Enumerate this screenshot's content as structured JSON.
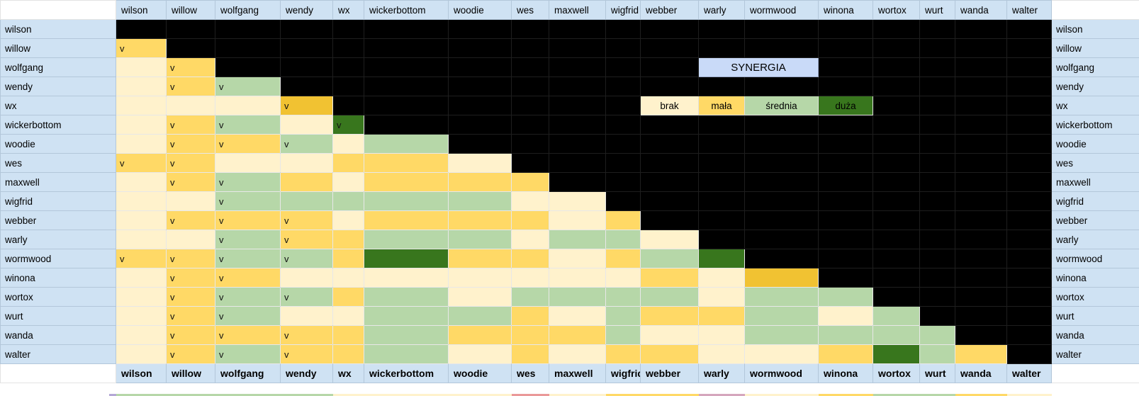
{
  "sheet": {
    "characters": [
      "wilson",
      "willow",
      "wolfgang",
      "wendy",
      "wx",
      "wickerbottom",
      "woodie",
      "wes",
      "maxwell",
      "wigfrid",
      "webber",
      "warly",
      "wormwood",
      "winona",
      "wortox",
      "wurt",
      "wanda",
      "walter"
    ],
    "check_mark": "v",
    "legend": {
      "title": "SYNERGIA",
      "items": [
        {
          "label": "brak",
          "key": "0"
        },
        {
          "label": "mała",
          "key": "1"
        },
        {
          "label": "średnia",
          "key": "2"
        },
        {
          "label": "duża",
          "key": "3"
        }
      ]
    },
    "colors": {
      "header_bg": "#cfe2f3",
      "legend_title_bg": "#c9daf8",
      "empty": "#000000",
      "brak": "#fff2cc",
      "mala": "#ffd966",
      "mala_dark": "#f1c232",
      "srednia": "#b6d7a8",
      "duza": "#38761d"
    },
    "bottom_strip": [
      "#b6d7a8",
      "#b6d7a8",
      "#b6d7a8",
      "#b6d7a8",
      "#fff2cc",
      "#fff2cc",
      "#fff2cc",
      "#ea9999",
      "#fff2cc",
      "#ffd966",
      "#ffd966",
      "#d5a6bd",
      "#fff2cc",
      "#ffd966",
      "#b6d7a8",
      "#b6d7a8",
      "#ffd966",
      "#fff2cc"
    ]
  },
  "chart_data": {
    "type": "heatmap",
    "title": "SYNERGIA",
    "legend": [
      "brak",
      "mała",
      "średnia",
      "duża"
    ],
    "code_key": {
      "b": "empty black cell (diagonal and upper triangle)",
      "0": "brak (no synergy, cream #fff2cc)",
      "1": "mała (small synergy, yellow #ffd966)",
      "d": "mała - darker gold variant (#f1c232)",
      "2": "średnia (medium synergy, light green #b6d7a8)",
      "3": "duża (large synergy, dark green #38761d)",
      "v": "suffix = cell contains a 'v' checkmark"
    },
    "columns_note": "cell order matches sheet.characters",
    "rows": [
      {
        "name": "wilson",
        "cells": [
          "b",
          "b",
          "b",
          "b",
          "b",
          "b",
          "b",
          "b",
          "b",
          "b",
          "b",
          "b",
          "b",
          "b",
          "b",
          "b",
          "b",
          "b"
        ]
      },
      {
        "name": "willow",
        "cells": [
          "1v",
          "b",
          "b",
          "b",
          "b",
          "b",
          "b",
          "b",
          "b",
          "b",
          "b",
          "b",
          "b",
          "b",
          "b",
          "b",
          "b",
          "b"
        ]
      },
      {
        "name": "wolfgang",
        "cells": [
          "0",
          "1v",
          "b",
          "b",
          "b",
          "b",
          "b",
          "b",
          "b",
          "b",
          "b",
          "b",
          "b",
          "b",
          "b",
          "b",
          "b",
          "b"
        ]
      },
      {
        "name": "wendy",
        "cells": [
          "0",
          "1v",
          "2v",
          "b",
          "b",
          "b",
          "b",
          "b",
          "b",
          "b",
          "b",
          "b",
          "b",
          "b",
          "b",
          "b",
          "b",
          "b"
        ]
      },
      {
        "name": "wx",
        "cells": [
          "0",
          "0",
          "0",
          "dv",
          "b",
          "b",
          "b",
          "b",
          "b",
          "b",
          "b",
          "b",
          "b",
          "b",
          "b",
          "b",
          "b",
          "b"
        ]
      },
      {
        "name": "wickerbottom",
        "cells": [
          "0",
          "1v",
          "2v",
          "0",
          "3v",
          "b",
          "b",
          "b",
          "b",
          "b",
          "b",
          "b",
          "b",
          "b",
          "b",
          "b",
          "b",
          "b"
        ]
      },
      {
        "name": "woodie",
        "cells": [
          "0",
          "1v",
          "1v",
          "2v",
          "0",
          "2",
          "b",
          "b",
          "b",
          "b",
          "b",
          "b",
          "b",
          "b",
          "b",
          "b",
          "b",
          "b"
        ]
      },
      {
        "name": "wes",
        "cells": [
          "1v",
          "1v",
          "0",
          "0",
          "1",
          "1",
          "0",
          "b",
          "b",
          "b",
          "b",
          "b",
          "b",
          "b",
          "b",
          "b",
          "b",
          "b"
        ]
      },
      {
        "name": "maxwell",
        "cells": [
          "0",
          "1v",
          "2v",
          "1",
          "0",
          "1",
          "1",
          "1",
          "b",
          "b",
          "b",
          "b",
          "b",
          "b",
          "b",
          "b",
          "b",
          "b"
        ]
      },
      {
        "name": "wigfrid",
        "cells": [
          "0",
          "0",
          "2v",
          "2",
          "2",
          "2",
          "2",
          "0",
          "0",
          "b",
          "b",
          "b",
          "b",
          "b",
          "b",
          "b",
          "b",
          "b"
        ]
      },
      {
        "name": "webber",
        "cells": [
          "0",
          "1v",
          "1v",
          "1v",
          "0",
          "1",
          "1",
          "1",
          "0",
          "1",
          "b",
          "b",
          "b",
          "b",
          "b",
          "b",
          "b",
          "b"
        ]
      },
      {
        "name": "warly",
        "cells": [
          "0",
          "0",
          "2v",
          "1v",
          "1",
          "2",
          "2",
          "0",
          "2",
          "2",
          "0",
          "b",
          "b",
          "b",
          "b",
          "b",
          "b",
          "b"
        ]
      },
      {
        "name": "wormwood",
        "cells": [
          "1v",
          "1v",
          "2v",
          "2v",
          "1",
          "3",
          "1",
          "1",
          "0",
          "1",
          "2",
          "3",
          "b",
          "b",
          "b",
          "b",
          "b",
          "b"
        ]
      },
      {
        "name": "winona",
        "cells": [
          "0",
          "1v",
          "1v",
          "0",
          "0",
          "0",
          "0",
          "0",
          "0",
          "0",
          "1",
          "0",
          "d",
          "b",
          "b",
          "b",
          "b",
          "b"
        ]
      },
      {
        "name": "wortox",
        "cells": [
          "0",
          "1v",
          "2v",
          "2v",
          "1",
          "2",
          "0",
          "2",
          "2",
          "2",
          "2",
          "0",
          "2",
          "2",
          "b",
          "b",
          "b",
          "b"
        ]
      },
      {
        "name": "wurt",
        "cells": [
          "0",
          "1v",
          "2v",
          "0",
          "0",
          "2",
          "2",
          "1",
          "0",
          "2",
          "1",
          "1",
          "2",
          "0",
          "2",
          "b",
          "b",
          "b"
        ]
      },
      {
        "name": "wanda",
        "cells": [
          "0",
          "1v",
          "1v",
          "1v",
          "1",
          "2",
          "1",
          "1",
          "1",
          "2",
          "0",
          "0",
          "2",
          "2",
          "2",
          "2",
          "b",
          "b"
        ]
      },
      {
        "name": "walter",
        "cells": [
          "0",
          "1v",
          "2v",
          "1v",
          "1",
          "2",
          "0",
          "1",
          "0",
          "1",
          "1",
          "0",
          "0",
          "1",
          "3",
          "2",
          "1",
          "b"
        ]
      }
    ]
  }
}
